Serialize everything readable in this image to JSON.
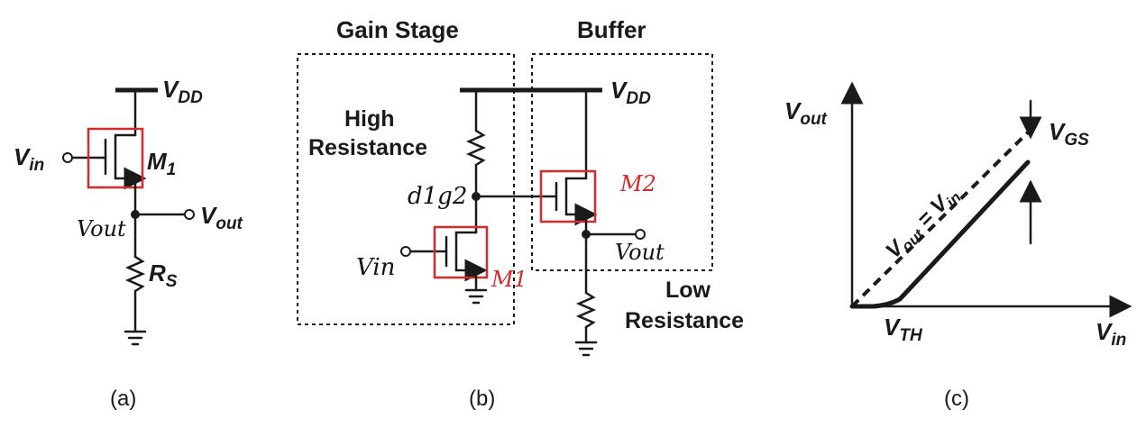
{
  "panel_a": {
    "vdd": "V",
    "vdd_sub": "DD",
    "vin": "V",
    "vin_sub": "in",
    "m1": "M",
    "m1_sub": "1",
    "vout": "V",
    "vout_sub": "out",
    "vout_hand": "Vout",
    "rs": "R",
    "rs_sub": "S",
    "caption": "(a)"
  },
  "panel_b": {
    "gain_stage": "Gain Stage",
    "buffer": "Buffer",
    "high_resistance_1": "High",
    "high_resistance_2": "Resistance",
    "low_resistance_1": "Low",
    "low_resistance_2": "Resistance",
    "vdd": "V",
    "vdd_sub": "DD",
    "d1g2": "d1g2",
    "vin_hand": "Vin",
    "m1_hand": "M1",
    "m2_hand": "M2",
    "vout_hand": "Vout",
    "caption": "(b)"
  },
  "panel_c": {
    "yaxis": "V",
    "yaxis_sub": "out",
    "xaxis": "V",
    "xaxis_sub": "in",
    "vgs": "V",
    "vgs_sub": "GS",
    "vth": "V",
    "vth_sub": "TH",
    "eq_v1": "V",
    "eq_v1_sub": "out",
    "eq_mid": " = ",
    "eq_v2": "V",
    "eq_v2_sub": "in",
    "caption": "(c)"
  },
  "colors": {
    "ink": "#1a1a1a",
    "annotation": "#d42a2a"
  }
}
